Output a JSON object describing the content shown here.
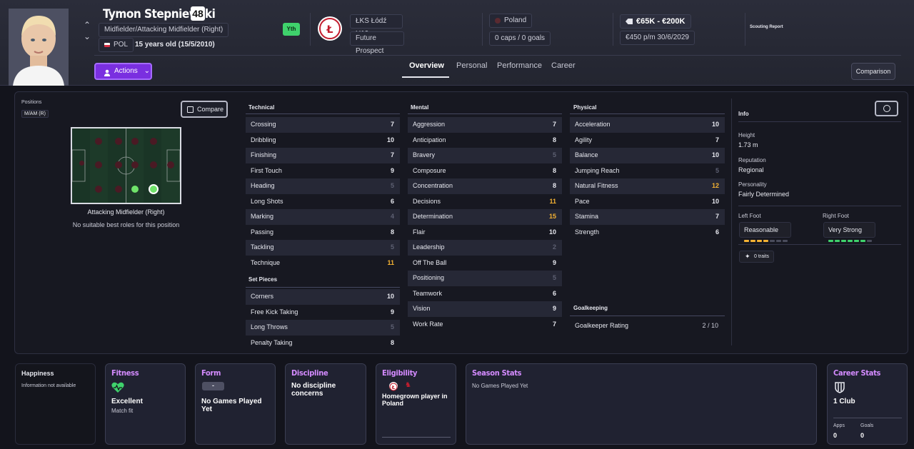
{
  "player": {
    "name": "Tymon Stepniewski",
    "ca": "48",
    "position": "Midfielder/Attacking Midfielder (Right)",
    "nation_code": "POL",
    "age": "15 years old (15/5/2010)",
    "youth_badge": "Yth"
  },
  "club": {
    "name": "ŁKS Łódź U19s",
    "status": "Future Prospect"
  },
  "nation": {
    "name": "Poland",
    "caps": "0 caps / 0 goals"
  },
  "value": {
    "range": "€65K - €200K",
    "wage": "€450 p/m",
    "contract": "30/6/2029"
  },
  "scouting": {
    "label": "Scouting Report"
  },
  "actions": {
    "label": "Actions"
  },
  "tabs": [
    "Overview",
    "Personal",
    "Performance",
    "Career"
  ],
  "comparison_button": "Comparison",
  "positions": {
    "title": "Positions",
    "current": "M/AM (R)",
    "compare": "Compare",
    "role": "Attacking Midfielder (Right)",
    "note": "No suitable best roles for this position"
  },
  "technical": {
    "title": "Technical",
    "rows": [
      {
        "name": "Crossing",
        "value": "7",
        "tone": "n"
      },
      {
        "name": "Dribbling",
        "value": "10",
        "tone": "n"
      },
      {
        "name": "Finishing",
        "value": "7",
        "tone": "n"
      },
      {
        "name": "First Touch",
        "value": "9",
        "tone": "n"
      },
      {
        "name": "Heading",
        "value": "5",
        "tone": "d"
      },
      {
        "name": "Long Shots",
        "value": "6",
        "tone": "n"
      },
      {
        "name": "Marking",
        "value": "4",
        "tone": "d"
      },
      {
        "name": "Passing",
        "value": "8",
        "tone": "n"
      },
      {
        "name": "Tackling",
        "value": "5",
        "tone": "d"
      },
      {
        "name": "Technique",
        "value": "11",
        "tone": "h"
      }
    ]
  },
  "set_pieces": {
    "title": "Set Pieces",
    "rows": [
      {
        "name": "Corners",
        "value": "10",
        "tone": "n"
      },
      {
        "name": "Free Kick Taking",
        "value": "9",
        "tone": "n"
      },
      {
        "name": "Long Throws",
        "value": "5",
        "tone": "d"
      },
      {
        "name": "Penalty Taking",
        "value": "8",
        "tone": "n"
      }
    ]
  },
  "mental": {
    "title": "Mental",
    "rows": [
      {
        "name": "Aggression",
        "value": "7",
        "tone": "n"
      },
      {
        "name": "Anticipation",
        "value": "8",
        "tone": "n"
      },
      {
        "name": "Bravery",
        "value": "5",
        "tone": "d"
      },
      {
        "name": "Composure",
        "value": "8",
        "tone": "n"
      },
      {
        "name": "Concentration",
        "value": "8",
        "tone": "n"
      },
      {
        "name": "Decisions",
        "value": "11",
        "tone": "h"
      },
      {
        "name": "Determination",
        "value": "15",
        "tone": "h"
      },
      {
        "name": "Flair",
        "value": "10",
        "tone": "n"
      },
      {
        "name": "Leadership",
        "value": "2",
        "tone": "d"
      },
      {
        "name": "Off The Ball",
        "value": "9",
        "tone": "n"
      },
      {
        "name": "Positioning",
        "value": "5",
        "tone": "d"
      },
      {
        "name": "Teamwork",
        "value": "6",
        "tone": "n"
      },
      {
        "name": "Vision",
        "value": "9",
        "tone": "n"
      },
      {
        "name": "Work Rate",
        "value": "7",
        "tone": "n"
      }
    ]
  },
  "physical": {
    "title": "Physical",
    "rows": [
      {
        "name": "Acceleration",
        "value": "10",
        "tone": "n"
      },
      {
        "name": "Agility",
        "value": "7",
        "tone": "n"
      },
      {
        "name": "Balance",
        "value": "10",
        "tone": "n"
      },
      {
        "name": "Jumping Reach",
        "value": "5",
        "tone": "d"
      },
      {
        "name": "Natural Fitness",
        "value": "12",
        "tone": "h"
      },
      {
        "name": "Pace",
        "value": "10",
        "tone": "n"
      },
      {
        "name": "Stamina",
        "value": "7",
        "tone": "n"
      },
      {
        "name": "Strength",
        "value": "6",
        "tone": "n"
      }
    ]
  },
  "goalkeeping": {
    "title": "Goalkeeping",
    "label": "Goalkeeper Rating",
    "value": "2 / 10"
  },
  "info": {
    "title": "Info",
    "height_label": "Height",
    "height": "1.73 m",
    "reputation_label": "Reputation",
    "reputation": "Regional",
    "personality_label": "Personality",
    "personality": "Fairly Determined",
    "left_foot_label": "Left Foot",
    "left_foot": "Reasonable",
    "left_foot_level": 4,
    "right_foot_label": "Right Foot",
    "right_foot": "Very Strong",
    "right_foot_level": 6,
    "foot_max": 7,
    "traits": "0 traits"
  },
  "cards": {
    "happiness": {
      "title": "Happiness",
      "text": "Information not available"
    },
    "fitness": {
      "title": "Fitness",
      "value": "Excellent",
      "sub": "Match fit"
    },
    "form": {
      "title": "Form",
      "badge": "-",
      "value": "No Games Played Yet"
    },
    "discipline": {
      "title": "Discipline",
      "value": "No discipline concerns"
    },
    "eligibility": {
      "title": "Eligibility",
      "value": "Homegrown player in Poland"
    },
    "season": {
      "title": "Season Stats",
      "text": "No Games Played Yet"
    },
    "career": {
      "title": "Career Stats",
      "clubs": "1 Club",
      "apps_label": "Apps",
      "apps": "0",
      "goals_label": "Goals",
      "goals": "0"
    }
  },
  "colors": {
    "accent": "#7a2fe0",
    "highlight": "#f4b233",
    "card_title": "#d48bff",
    "fitness": "#3fd26c"
  }
}
